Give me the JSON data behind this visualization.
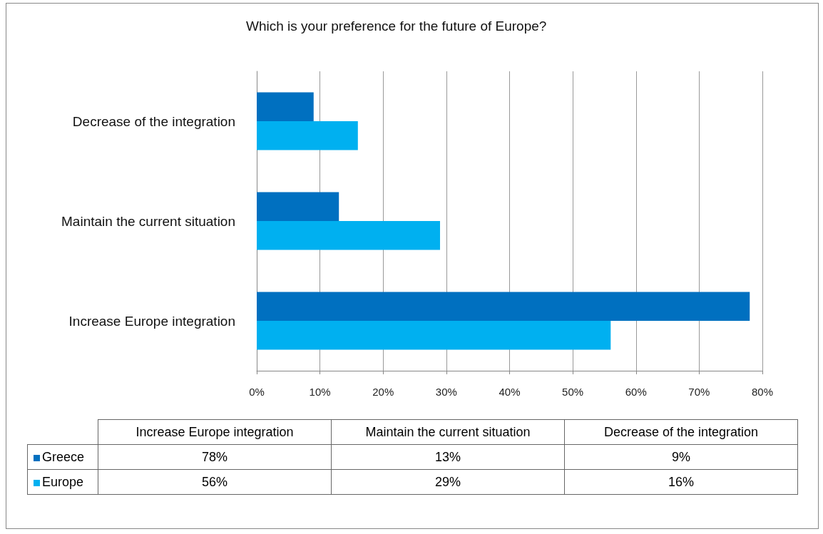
{
  "chart_data": {
    "type": "bar",
    "orientation": "horizontal",
    "title": "Which is your preference for the future of Europe?",
    "categories": [
      "Decrease of the integration",
      "Maintain the current situation",
      "Increase Europe integration"
    ],
    "series": [
      {
        "name": "Greece",
        "color": "#0070c0",
        "values": [
          9,
          13,
          78
        ]
      },
      {
        "name": "Europe",
        "color": "#00b0f0",
        "values": [
          16,
          29,
          56
        ]
      }
    ],
    "annotations": [
      "78%",
      "13%",
      "9%",
      "56%",
      "29%",
      "16%"
    ],
    "xlim": [
      0,
      80
    ],
    "xticks": [
      {
        "value": 0,
        "label": "0%"
      },
      {
        "value": 10,
        "label": "10%"
      },
      {
        "value": 20,
        "label": "20%"
      },
      {
        "value": 30,
        "label": "30%"
      },
      {
        "value": 40,
        "label": "40%"
      },
      {
        "value": 50,
        "label": "50%"
      },
      {
        "value": 60,
        "label": "60%"
      },
      {
        "value": 70,
        "label": "70%"
      },
      {
        "value": 80,
        "label": "80%"
      }
    ],
    "grid": "x",
    "legend": "bottom"
  }
}
